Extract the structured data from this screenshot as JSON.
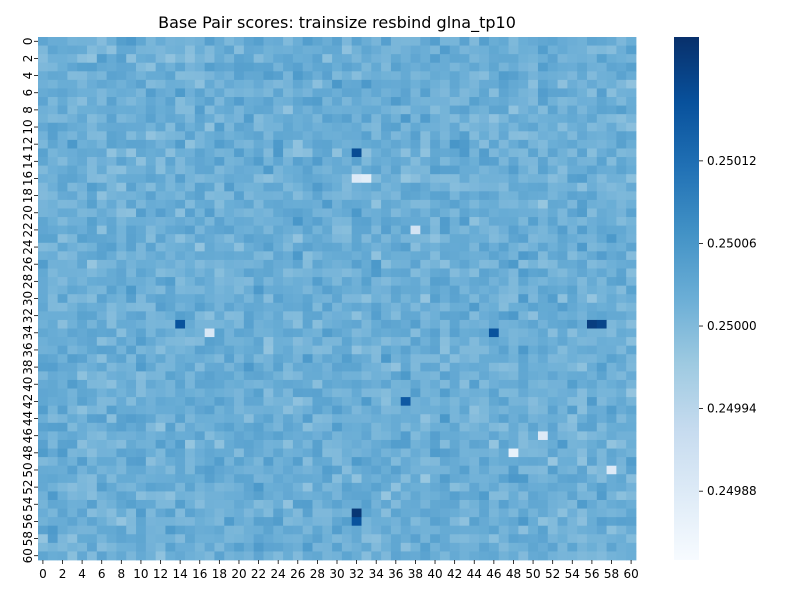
{
  "chart_data": {
    "type": "heatmap",
    "title": "Base Pair scores: trainsize resbind glna_tp10",
    "xlabel": "",
    "ylabel": "",
    "rows": 61,
    "cols": 61,
    "x_tick_labels": [
      "0",
      "2",
      "4",
      "6",
      "8",
      "10",
      "12",
      "14",
      "16",
      "18",
      "20",
      "22",
      "24",
      "26",
      "28",
      "30",
      "32",
      "34",
      "36",
      "38",
      "40",
      "42",
      "44",
      "46",
      "48",
      "50",
      "52",
      "54",
      "56",
      "58",
      "60"
    ],
    "y_tick_labels": [
      "0",
      "2",
      "4",
      "6",
      "8",
      "10",
      "12",
      "14",
      "16",
      "18",
      "20",
      "22",
      "24",
      "26",
      "28",
      "30",
      "32",
      "34",
      "36",
      "38",
      "40",
      "42",
      "44",
      "46",
      "48",
      "50",
      "52",
      "54",
      "56",
      "58",
      "60"
    ],
    "colormap": "Blues",
    "vmin": 0.24983,
    "vmax": 0.25021,
    "colorbar_ticks": [
      "0.25012",
      "0.25006",
      "0.25000",
      "0.24994",
      "0.24988"
    ],
    "colorbar_tick_values": [
      0.25012,
      0.25006,
      0.25,
      0.24994,
      0.24988
    ],
    "value_estimate": {
      "mean": 0.25002,
      "variation": 4e-05,
      "note_regions": [
        {
          "row": 33,
          "col": 56,
          "value": 0.25019
        },
        {
          "row": 33,
          "col": 57,
          "value": 0.25018
        },
        {
          "row": 33,
          "col": 14,
          "value": 0.25016
        },
        {
          "row": 13,
          "col": 32,
          "value": 0.25017
        },
        {
          "row": 55,
          "col": 32,
          "value": 0.2502
        },
        {
          "row": 56,
          "col": 32,
          "value": 0.25016
        },
        {
          "row": 34,
          "col": 46,
          "value": 0.25016
        },
        {
          "row": 42,
          "col": 37,
          "value": 0.25015
        },
        {
          "row": 16,
          "col": 32,
          "value": 0.24988
        },
        {
          "row": 16,
          "col": 33,
          "value": 0.24987
        },
        {
          "row": 34,
          "col": 17,
          "value": 0.24989
        },
        {
          "row": 46,
          "col": 51,
          "value": 0.24988
        },
        {
          "row": 48,
          "col": 48,
          "value": 0.24986
        },
        {
          "row": 50,
          "col": 58,
          "value": 0.24988
        },
        {
          "row": 22,
          "col": 38,
          "value": 0.2499
        }
      ]
    }
  }
}
